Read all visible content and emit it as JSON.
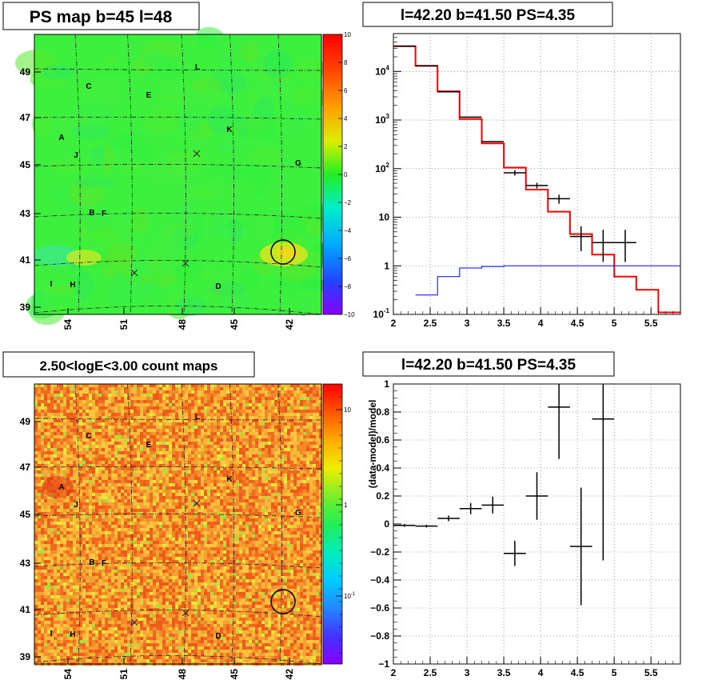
{
  "panels": {
    "top_left_title": "PS map b=45 l=48",
    "top_right_title": "l=42.20 b=41.50 PS=4.35",
    "bottom_left_title": "2.50<logE<3.00 count maps",
    "bottom_right_title": "l=42.20 b=41.50 PS=4.35",
    "ratio_ylabel": "(data-model)/model"
  },
  "chart_data": [
    {
      "type": "heatmap",
      "panel": "top-left",
      "title": "PS map b=45 l=48",
      "xticks": [
        "54",
        "51",
        "48",
        "45",
        "42"
      ],
      "yticks": [
        "49",
        "47",
        "45",
        "43",
        "41",
        "39"
      ],
      "colorbar": {
        "scale": "linear",
        "range": [
          -10,
          10
        ],
        "tick_labels": [
          "10",
          "8",
          "6",
          "4",
          "2",
          "0",
          "−2",
          "−4",
          "−6",
          "−8",
          "−10"
        ]
      },
      "background_value": 0.5,
      "source_labels": [
        "L",
        "C",
        "E",
        "K",
        "A",
        "J",
        "G",
        "B",
        "F",
        "I",
        "H",
        "D"
      ],
      "circled_source": {
        "l": 42.2,
        "b": 41.5
      }
    },
    {
      "type": "line",
      "panel": "top-right",
      "title": "l=42.20 b=41.50 PS=4.35",
      "x_range": [
        2,
        5.9
      ],
      "y_scale": "log",
      "y_range": [
        0.1,
        60000
      ],
      "xticks": [
        "2",
        "2.5",
        "3",
        "3.5",
        "4",
        "4.5",
        "5",
        "5.5"
      ],
      "yticks": [
        "10^-1",
        "1",
        "10",
        "10^2",
        "10^3",
        "10^4"
      ],
      "grid": true,
      "series": [
        {
          "color": "#ff0000",
          "style": "step",
          "edges": [
            2.0,
            2.3,
            2.6,
            2.9,
            3.2,
            3.5,
            3.8,
            4.1,
            4.4,
            4.7,
            5.0,
            5.3,
            5.6,
            5.9
          ],
          "values": [
            33000,
            13000,
            3900,
            1050,
            330,
            105,
            37,
            13,
            4.5,
            1.7,
            0.6,
            0.32,
            0.11
          ]
        },
        {
          "color": "#0000ff",
          "style": "step",
          "edges": [
            2.3,
            2.6,
            2.9,
            3.2,
            3.5,
            3.8,
            5.9
          ],
          "values": [
            0.25,
            0.6,
            0.9,
            0.97,
            1.0,
            1.0
          ]
        },
        {
          "color": "#000000",
          "style": "points",
          "x": [
            2.15,
            2.45,
            2.75,
            3.05,
            3.35,
            3.65,
            3.95,
            4.25,
            4.55,
            4.85,
            5.15
          ],
          "y": [
            33000,
            13000,
            3800,
            1150,
            360,
            82,
            45,
            24,
            4,
            3,
            3
          ],
          "xerr": 0.15,
          "yerr_lo": [
            0,
            0,
            0,
            0,
            0,
            10,
            6,
            5,
            2,
            1.8,
            1.8
          ],
          "yerr_hi": [
            0,
            0,
            0,
            0,
            0,
            10,
            6,
            5,
            2.5,
            2.5,
            2.5
          ]
        }
      ]
    },
    {
      "type": "heatmap",
      "panel": "bottom-left",
      "title": "2.50<logE<3.00 count maps",
      "xticks": [
        "54",
        "51",
        "48",
        "45",
        "42"
      ],
      "yticks": [
        "49",
        "47",
        "45",
        "43",
        "41",
        "39"
      ],
      "colorbar": {
        "scale": "log",
        "tick_labels": [
          "10",
          "1",
          "10^-1"
        ]
      },
      "source_labels": [
        "L",
        "C",
        "E",
        "K",
        "A",
        "J",
        "G",
        "B",
        "F",
        "I",
        "H",
        "D"
      ],
      "circled_source": {
        "l": 42.2,
        "b": 41.5
      }
    },
    {
      "type": "scatter",
      "panel": "bottom-right",
      "title": "l=42.20 b=41.50 PS=4.35",
      "ylabel": "(data-model)/model",
      "x_range": [
        2,
        5.9
      ],
      "y_range": [
        -1,
        1
      ],
      "xticks": [
        "2",
        "2.5",
        "3",
        "3.5",
        "4",
        "4.5",
        "5",
        "5.5"
      ],
      "yticks": [
        "−1",
        "−0.8",
        "−0.6",
        "−0.4",
        "−0.2",
        "0",
        "0.2",
        "0.4",
        "0.6",
        "0.8",
        "1"
      ],
      "grid": true,
      "x": [
        2.15,
        2.45,
        2.75,
        3.05,
        3.35,
        3.65,
        3.95,
        4.25,
        4.55,
        4.85
      ],
      "y": [
        -0.01,
        -0.015,
        0.04,
        0.11,
        0.135,
        -0.21,
        0.2,
        0.835,
        -0.16,
        0.75
      ],
      "xerr": 0.15,
      "yerr": [
        0.01,
        0.01,
        0.02,
        0.04,
        0.06,
        0.09,
        0.17,
        0.37,
        0.42,
        1.01
      ]
    }
  ]
}
